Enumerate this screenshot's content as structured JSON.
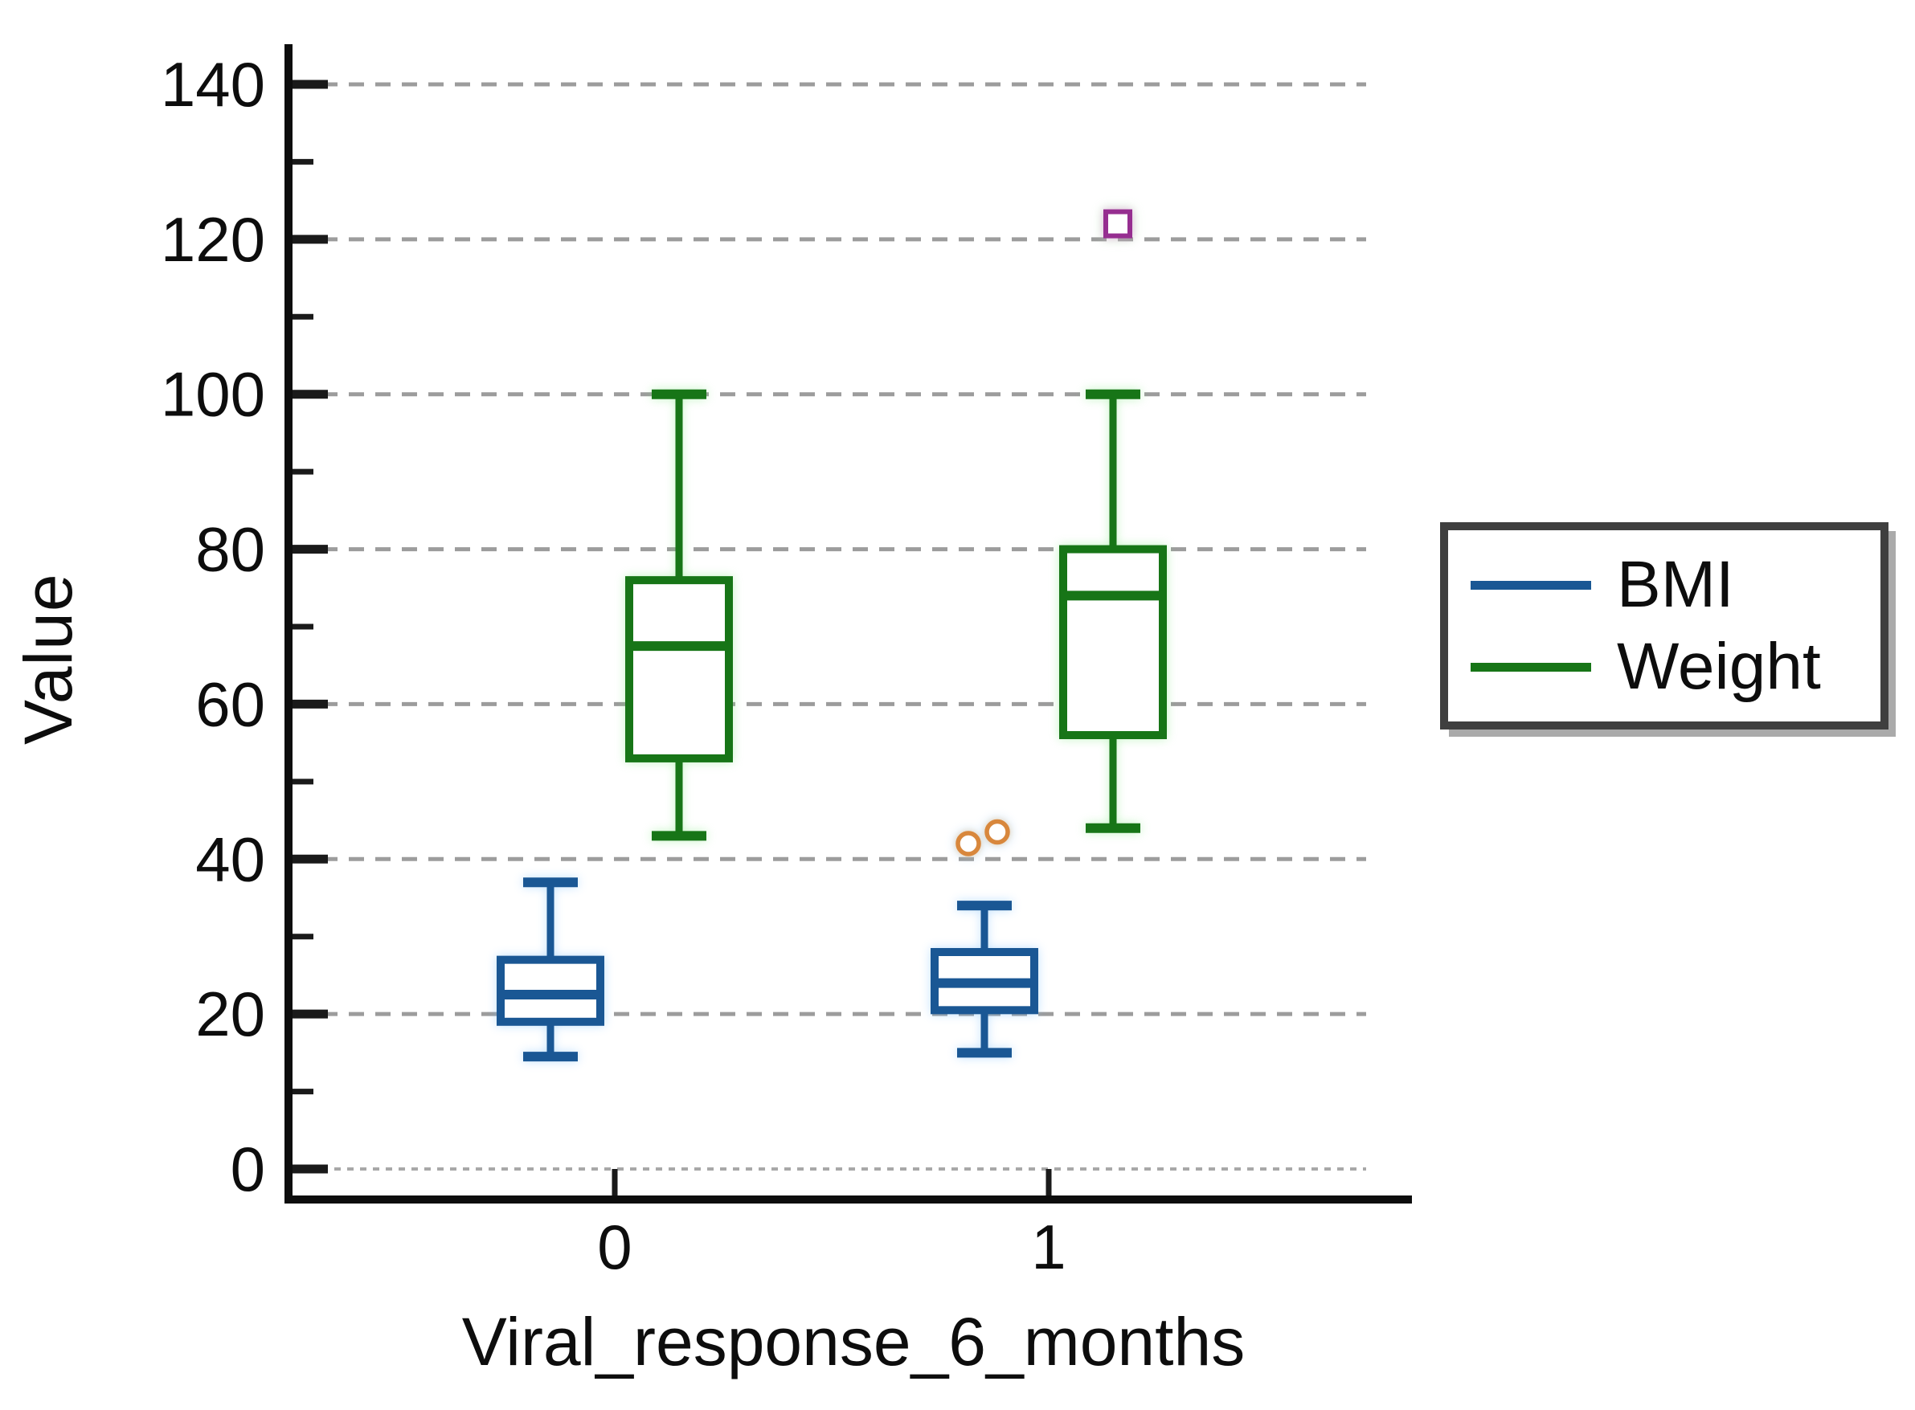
{
  "figure": {
    "background": "#ffffff"
  },
  "chart_data": {
    "type": "boxplot",
    "title": "",
    "xlabel": "Viral_response_6_months",
    "ylabel": "Value",
    "categories": [
      "0",
      "1"
    ],
    "y_axis": {
      "min": 0,
      "max": 145,
      "major_step": 20,
      "minor_step": 10,
      "tick_labels": [
        "0",
        "20",
        "40",
        "60",
        "80",
        "100",
        "120",
        "140"
      ],
      "grid": "dashed horizontal"
    },
    "legend": {
      "position": "right",
      "items": [
        {
          "label": "BMI",
          "color": "#1A5794"
        },
        {
          "label": "Weight",
          "color": "#177517"
        }
      ]
    },
    "series": [
      {
        "name": "BMI",
        "color": "#1A5794",
        "glow_class": "glow-blue",
        "outlier_marker": {
          "shape": "circle",
          "color": "#D8873C"
        },
        "boxes": [
          {
            "category": "0",
            "min": 14.5,
            "q1": 19,
            "median": 22.5,
            "q3": 27,
            "max": 37,
            "outliers": [],
            "outlier_dx": []
          },
          {
            "category": "1",
            "min": 15,
            "q1": 20.5,
            "median": 24,
            "q3": 28,
            "max": 34,
            "outliers": [
              42,
              43.5
            ],
            "outlier_dx": [
              -20,
              16
            ]
          }
        ]
      },
      {
        "name": "Weight",
        "color": "#177517",
        "glow_class": "glow-green",
        "outlier_marker": {
          "shape": "square",
          "color": "#962E90"
        },
        "boxes": [
          {
            "category": "0",
            "min": 43,
            "q1": 53,
            "median": 67.5,
            "q3": 76,
            "max": 100,
            "outliers": [],
            "outlier_dx": []
          },
          {
            "category": "1",
            "min": 44,
            "q1": 56,
            "median": 74,
            "q3": 80,
            "max": 100,
            "outliers": [
              122
            ],
            "outlier_dx": [
              6
            ]
          }
        ]
      }
    ],
    "colors": {
      "grid": "#9C9C9C",
      "zero_grid": "#A8A8A8",
      "axis": "#0D0D0D",
      "tick": "#1A1A1A",
      "text": "#0D0D0D",
      "legend_border": "#3F3F3F",
      "box_fill": "#FFFFFF"
    }
  }
}
